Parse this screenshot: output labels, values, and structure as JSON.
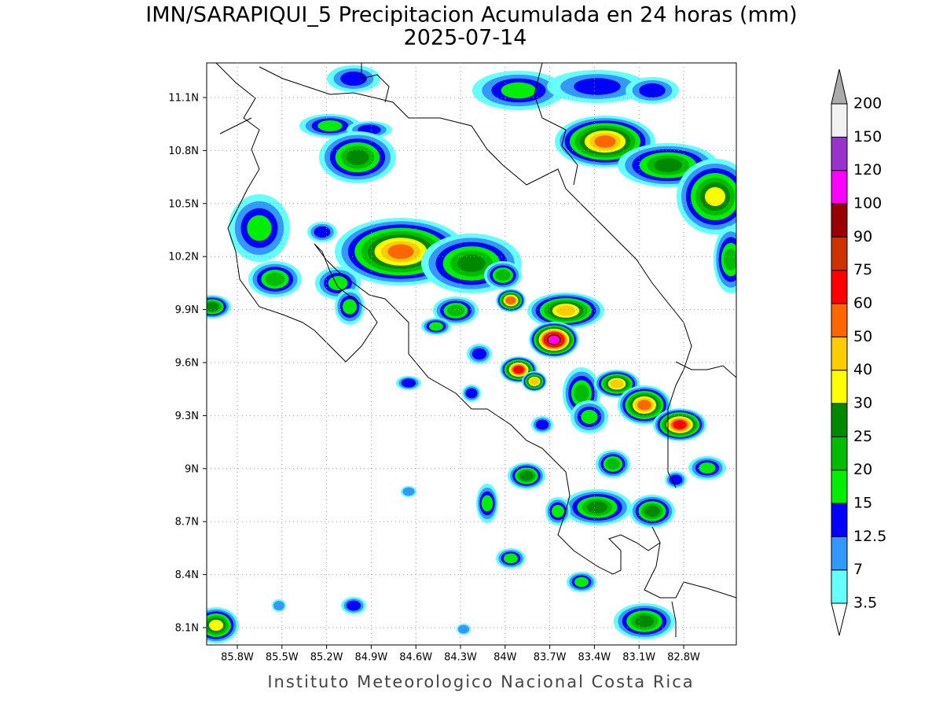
{
  "title": "IMN/SARAPIQUI_5 Precipitacion Acumulada en 24 horas (mm)",
  "subtitle": "2025-07-14",
  "map": {
    "lat_ticks": [
      "11.1N",
      "10.8N",
      "10.5N",
      "10.2N",
      "9.9N",
      "9.6N",
      "9.3N",
      "9N",
      "8.7N",
      "8.4N",
      "8.1N"
    ],
    "lon_ticks": [
      "85.8W",
      "85.5W",
      "85.2W",
      "84.9W",
      "84.6W",
      "84.3W",
      "84W",
      "83.7W",
      "83.4W",
      "83.1W",
      "82.8W"
    ]
  },
  "colorbar": {
    "levels": [
      3.5,
      7,
      12.5,
      15,
      20,
      25,
      30,
      40,
      50,
      60,
      75,
      90,
      100,
      120,
      150,
      200
    ],
    "colors": [
      "#66ffff",
      "#3399ff",
      "#0000ff",
      "#00ee00",
      "#00bb00",
      "#008800",
      "#ffff00",
      "#ffcc00",
      "#ff6600",
      "#ff0000",
      "#cc3300",
      "#990000",
      "#ff00ff",
      "#9933cc",
      "#f2f2f2"
    ],
    "under_color": "#ffffff",
    "over_color": "#aaaaaa"
  },
  "footer": "Instituto Meteorologico Nacional Costa Rica"
}
